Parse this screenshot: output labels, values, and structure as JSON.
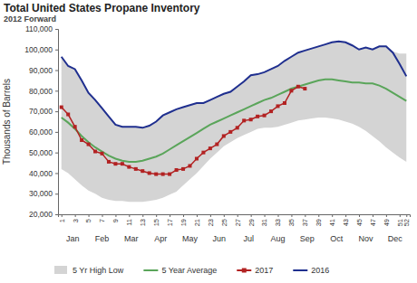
{
  "chart_data": {
    "type": "line",
    "title": "Total United States Propane Inventory",
    "subtitle": "2012 Forward",
    "y_label": "Thousands of Barrels",
    "x": [
      1,
      2,
      3,
      4,
      5,
      6,
      7,
      8,
      9,
      10,
      11,
      12,
      13,
      14,
      15,
      16,
      17,
      18,
      19,
      20,
      21,
      22,
      23,
      24,
      25,
      26,
      27,
      28,
      29,
      30,
      31,
      32,
      33,
      34,
      35,
      36,
      37,
      38,
      39,
      40,
      41,
      42,
      43,
      44,
      45,
      46,
      47,
      48,
      49,
      50,
      51,
      52
    ],
    "months": [
      "Jan",
      "Feb",
      "Mar",
      "Apr",
      "May",
      "Jun",
      "Jul",
      "Aug",
      "Sep",
      "Oct",
      "Nov",
      "Dec"
    ],
    "xlim": [
      0.5,
      52.5
    ],
    "xticks": [
      1,
      3,
      5,
      7,
      9,
      11,
      13,
      15,
      17,
      19,
      21,
      23,
      25,
      27,
      29,
      31,
      33,
      35,
      37,
      39,
      41,
      43,
      45,
      47,
      49,
      51,
      52
    ],
    "ylim": [
      20000,
      110000
    ],
    "yticks": [
      {
        "value": 20000,
        "label": "20,000"
      },
      {
        "value": 30000,
        "label": "30,000"
      },
      {
        "value": 40000,
        "label": "40,000"
      },
      {
        "value": 50000,
        "label": "50,000"
      },
      {
        "value": 60000,
        "label": "60,000"
      },
      {
        "value": 70000,
        "label": "70,000"
      },
      {
        "value": 80000,
        "label": "80,000"
      },
      {
        "value": 90000,
        "label": "90,000"
      },
      {
        "value": 100000,
        "label": "100,000"
      },
      {
        "value": 110000,
        "label": "110,000"
      }
    ],
    "grid": false,
    "legend": "bottom",
    "series": [
      {
        "name": "5 Yr High Low",
        "type": "area",
        "color": "#d4d4d4",
        "values": [
          96500,
          92000,
          90500,
          85000,
          79000,
          75500,
          71500,
          67500,
          63500,
          62500,
          62500,
          62500,
          62000,
          63000,
          65000,
          68000,
          69500,
          71000,
          72000,
          73000,
          74000,
          74000,
          75500,
          77000,
          78500,
          79500,
          82000,
          84500,
          87500,
          88000,
          89000,
          90500,
          92000,
          94500,
          96500,
          98500,
          99500,
          100500,
          101500,
          102500,
          103500,
          104000,
          103500,
          102000,
          100000,
          101000,
          100000,
          101500,
          101500,
          99000,
          98000,
          98000
        ],
        "low": [
          42000,
          40000,
          37000,
          34000,
          31500,
          30000,
          28000,
          27000,
          26500,
          26500,
          26000,
          26000,
          26000,
          26500,
          27000,
          28000,
          29500,
          31000,
          34000,
          37000,
          40000,
          43500,
          47000,
          50000,
          53000,
          55000,
          57000,
          58500,
          60000,
          61500,
          62000,
          62000,
          62500,
          63500,
          64500,
          65500,
          66000,
          66500,
          67000,
          67000,
          66500,
          66000,
          65000,
          64000,
          62500,
          60500,
          58000,
          55500,
          52500,
          50000,
          47500,
          45500
        ]
      },
      {
        "name": "5 Year Average",
        "type": "line",
        "color": "#5aa55a",
        "values": [
          67000,
          64500,
          61500,
          58000,
          55000,
          52500,
          50500,
          48500,
          47000,
          46000,
          45500,
          45500,
          46000,
          47000,
          48000,
          49500,
          51500,
          53500,
          55500,
          57500,
          59500,
          61500,
          63500,
          65000,
          66500,
          68000,
          69500,
          71000,
          72500,
          74000,
          75500,
          76500,
          78000,
          79500,
          81000,
          82000,
          83000,
          84000,
          85000,
          85500,
          85500,
          85000,
          84500,
          84000,
          84000,
          83500,
          83500,
          82500,
          81000,
          79000,
          77000,
          75000
        ]
      },
      {
        "name": "2017",
        "type": "line",
        "color": "#b22222",
        "marker": "square",
        "values": [
          72000,
          68500,
          62500,
          56000,
          54000,
          50500,
          49500,
          45500,
          44500,
          44500,
          43000,
          42000,
          41000,
          40000,
          39500,
          39500,
          39500,
          41500,
          42000,
          43500,
          47000,
          50000,
          52000,
          54000,
          58000,
          60000,
          62000,
          65500,
          66000,
          67500,
          68000,
          70000,
          72500,
          74000,
          80000,
          82000,
          81000,
          null,
          null,
          null,
          null,
          null,
          null,
          null,
          null,
          null,
          null,
          null,
          null,
          null,
          null,
          null
        ]
      },
      {
        "name": "2016",
        "type": "line",
        "color": "#1f2f8f",
        "values": [
          96500,
          92000,
          90500,
          85000,
          79000,
          75500,
          71500,
          67500,
          63500,
          62500,
          62500,
          62500,
          62000,
          63000,
          65000,
          68000,
          69500,
          71000,
          72000,
          73000,
          74000,
          74000,
          75500,
          77000,
          78500,
          79500,
          82000,
          84500,
          87500,
          88000,
          89000,
          90500,
          92000,
          94500,
          96500,
          98500,
          99500,
          100500,
          101500,
          102500,
          103500,
          104000,
          103500,
          102000,
          100000,
          101000,
          100000,
          101500,
          101500,
          98500,
          93000,
          87000
        ]
      }
    ]
  }
}
